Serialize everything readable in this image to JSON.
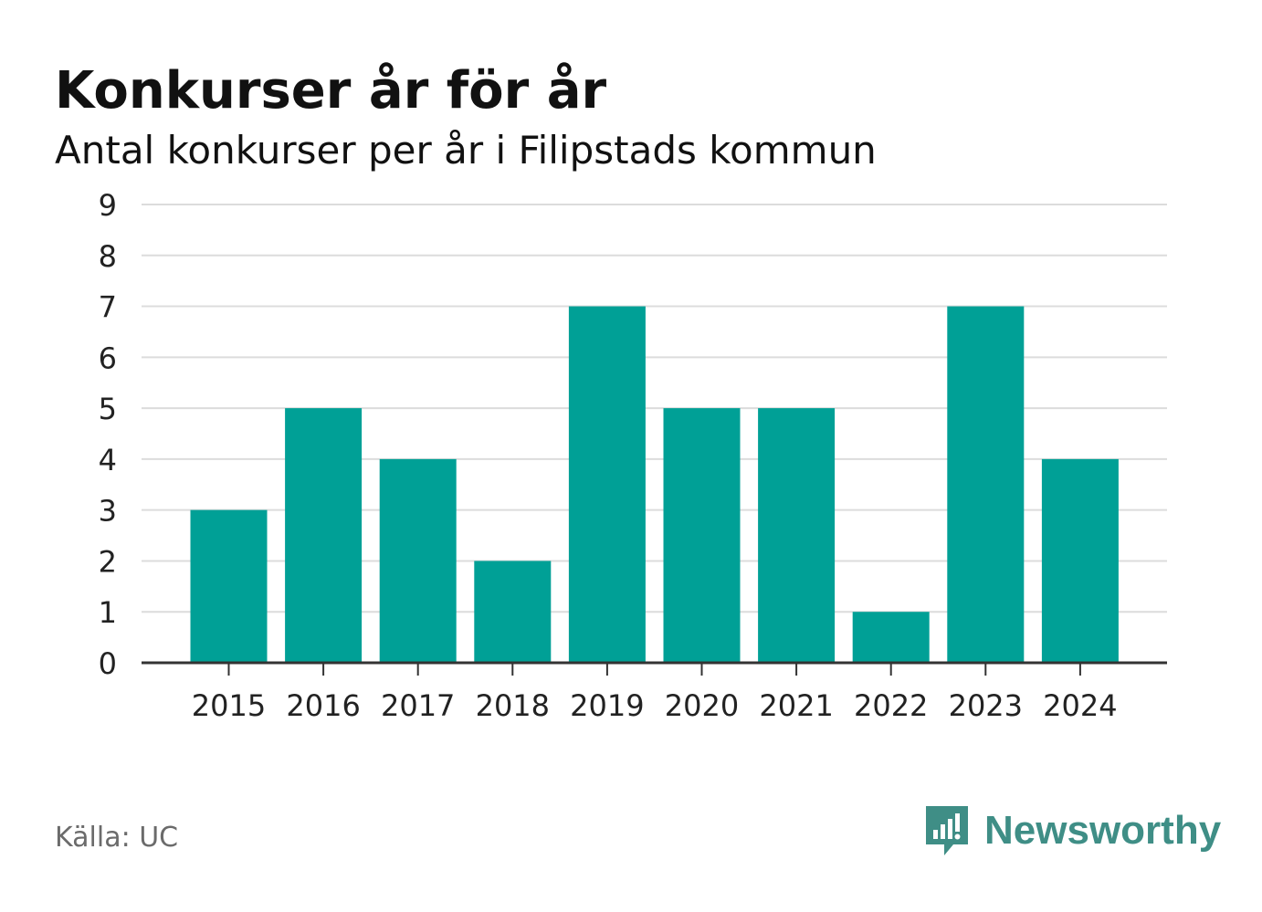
{
  "header": {
    "title": "Konkurser år för år",
    "subtitle": "Antal konkurser per år i Filipstads kommun"
  },
  "footer": {
    "source": "Källa: UC",
    "brand": "Newsworthy",
    "brand_icon": "newsworthy-logo-icon"
  },
  "colors": {
    "bar": "#00a096",
    "grid": "#dcdcdc",
    "axis": "#333333",
    "brand": "#3f8e86"
  },
  "chart_data": {
    "type": "bar",
    "categories": [
      "2015",
      "2016",
      "2017",
      "2018",
      "2019",
      "2020",
      "2021",
      "2022",
      "2023",
      "2024"
    ],
    "values": [
      3,
      5,
      4,
      2,
      7,
      5,
      5,
      1,
      7,
      4
    ],
    "title": "Konkurser år för år",
    "subtitle": "Antal konkurser per år i Filipstads kommun",
    "xlabel": "",
    "ylabel": "",
    "ylim": [
      0,
      9
    ],
    "yticks": [
      "0",
      "1",
      "2",
      "3",
      "4",
      "5",
      "6",
      "7",
      "8",
      "9"
    ],
    "grid": true,
    "legend": "none"
  }
}
